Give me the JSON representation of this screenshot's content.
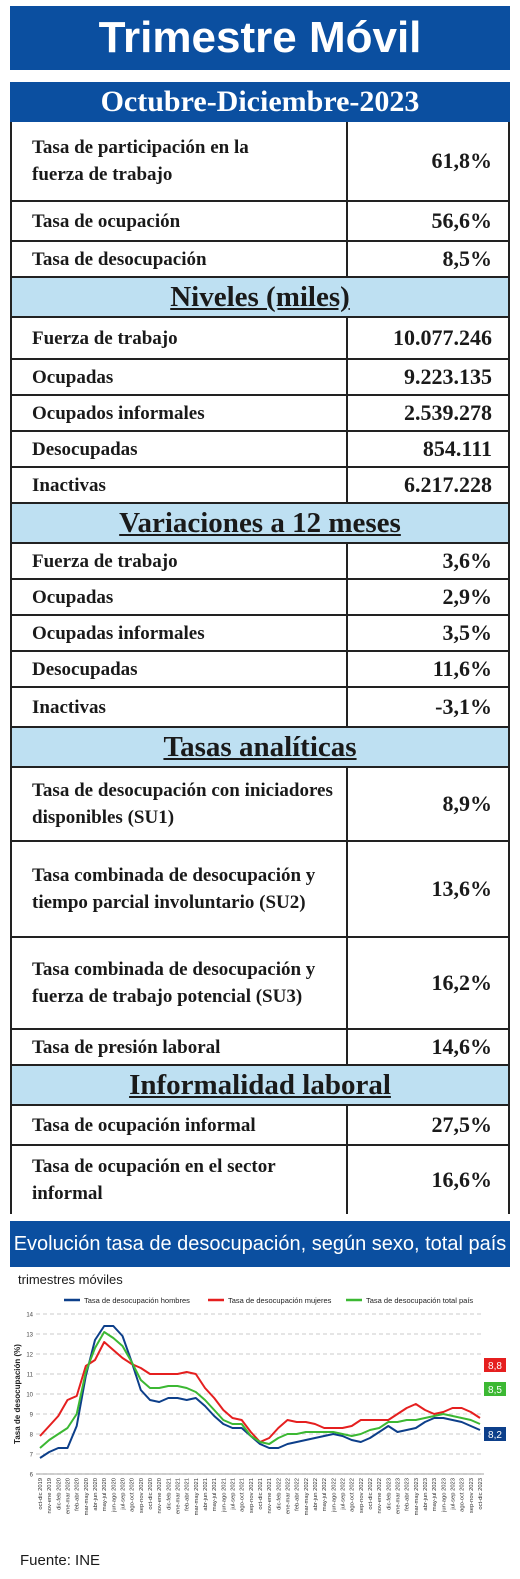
{
  "header": {
    "title": "Trimestre Móvil",
    "period": "Octubre-Diciembre-2023"
  },
  "rates": [
    {
      "label": "Tasa de participación en la fuerza de trabajo",
      "value": "61,8%"
    },
    {
      "label": "Tasa de ocupación",
      "value": "56,6%"
    },
    {
      "label": "Tasa de desocupación",
      "value": "8,5%"
    }
  ],
  "levels": {
    "title": "Niveles (miles)",
    "rows": [
      {
        "label": "Fuerza de trabajo",
        "value": "10.077.246"
      },
      {
        "label": "Ocupadas",
        "value": "9.223.135"
      },
      {
        "label": "Ocupados informales",
        "value": "2.539.278"
      },
      {
        "label": "Desocupadas",
        "value": "854.111"
      },
      {
        "label": "Inactivas",
        "value": "6.217.228"
      }
    ]
  },
  "variations": {
    "title": "Variaciones a 12 meses",
    "rows": [
      {
        "label": "Fuerza de trabajo",
        "value": "3,6%"
      },
      {
        "label": "Ocupadas",
        "value": "2,9%"
      },
      {
        "label": "Ocupadas informales",
        "value": "3,5%"
      },
      {
        "label": "Desocupadas",
        "value": "11,6%"
      },
      {
        "label": "Inactivas",
        "value": "-3,1%"
      }
    ]
  },
  "analytic": {
    "title": "Tasas analíticas",
    "rows": [
      {
        "label": "Tasa de desocupación con iniciadores disponibles (SU1)",
        "value": "8,9%"
      },
      {
        "label": "Tasa combinada de desocupación y tiempo parcial involuntario (SU2)",
        "value": "13,6%"
      },
      {
        "label": "Tasa combinada de desocupación y fuerza de trabajo potencial (SU3)",
        "value": "16,2%"
      },
      {
        "label": "Tasa de presión laboral",
        "value": "14,6%"
      }
    ]
  },
  "informality": {
    "title": "Informalidad laboral",
    "rows": [
      {
        "label": "Tasa de ocupación informal",
        "value": "27,5%"
      },
      {
        "label": "Tasa de ocupación en el sector informal",
        "value": "16,6%"
      }
    ]
  },
  "chart_section": {
    "title": "Evolución tasa de desocupación, según sexo, total país",
    "subtitle": "trimestres móviles"
  },
  "chart_data": {
    "type": "line",
    "ylabel": "Tasa de desocupación (%)",
    "ylim": [
      6,
      14
    ],
    "yticks": [
      6,
      7,
      8,
      9,
      10,
      11,
      12,
      13,
      14
    ],
    "grid": true,
    "legend_position": "top",
    "x": [
      "oct-dic 2019",
      "nov-ene 2019",
      "dic-feb 2020",
      "ene-mar 2020",
      "feb-abr 2020",
      "mar-may 2020",
      "abr-jun 2020",
      "may-jul 2020",
      "jun-ago 2020",
      "jul-sep 2020",
      "ago-oct 2020",
      "sep-nov 2020",
      "oct-dic 2020",
      "nov-ene 2020",
      "dic-feb 2021",
      "ene-mar 2021",
      "feb-abr 2021",
      "mar-may 2021",
      "abr-jun 2021",
      "may-jul 2021",
      "jun-ago 2021",
      "jul-sep 2021",
      "ago-oct 2021",
      "sep-nov 2021",
      "oct-dic 2021",
      "nov-ene 2021",
      "dic-feb 2022",
      "ene-mar 2022",
      "feb-abr 2022",
      "mar-may 2022",
      "abr-jun 2022",
      "may-jul 2022",
      "jun-ago 2022",
      "jul-sep 2022",
      "ago-oct 2022",
      "sep-nov 2022",
      "oct-dic 2022",
      "nov-ene 2022",
      "dic-feb 2023",
      "ene-mar 2023",
      "feb-abr 2023",
      "mar-may 2023",
      "abr-jun 2023",
      "may-jul 2023",
      "jun-ago 2023",
      "jul-sep 2023",
      "ago-oct 2023",
      "sep-nov 2023",
      "oct-dic 2023"
    ],
    "series": [
      {
        "name": "Tasa de desocupación hombres",
        "color": "#0d3f8a",
        "end_label": "8,2",
        "values": [
          6.8,
          7.1,
          7.3,
          7.3,
          8.4,
          10.9,
          12.7,
          13.4,
          13.4,
          12.9,
          11.6,
          10.2,
          9.7,
          9.6,
          9.8,
          9.8,
          9.7,
          9.8,
          9.4,
          8.9,
          8.5,
          8.3,
          8.3,
          7.9,
          7.5,
          7.3,
          7.3,
          7.5,
          7.6,
          7.7,
          7.8,
          7.9,
          8.0,
          7.9,
          7.7,
          7.6,
          7.8,
          8.1,
          8.4,
          8.1,
          8.2,
          8.3,
          8.6,
          8.8,
          8.8,
          8.7,
          8.6,
          8.4,
          8.2
        ]
      },
      {
        "name": "Tasa de desocupación mujeres",
        "color": "#e51f1f",
        "end_label": "8,8",
        "values": [
          7.9,
          8.4,
          8.9,
          9.7,
          9.9,
          11.4,
          11.7,
          12.6,
          12.2,
          11.8,
          11.5,
          11.3,
          11.0,
          11.0,
          11.0,
          11.0,
          11.1,
          11.0,
          10.3,
          9.8,
          9.2,
          8.8,
          8.7,
          8.1,
          7.6,
          7.8,
          8.3,
          8.7,
          8.6,
          8.6,
          8.5,
          8.3,
          8.3,
          8.3,
          8.4,
          8.7,
          8.7,
          8.7,
          8.7,
          9.0,
          9.3,
          9.5,
          9.2,
          9.0,
          9.1,
          9.3,
          9.3,
          9.1,
          8.8
        ]
      },
      {
        "name": "Tasa de desocupación total país",
        "color": "#3cb833",
        "end_label": "8,5",
        "values": [
          7.3,
          7.7,
          8.0,
          8.3,
          9.0,
          11.1,
          12.3,
          13.1,
          12.8,
          12.4,
          11.6,
          10.7,
          10.3,
          10.3,
          10.4,
          10.4,
          10.3,
          10.1,
          9.7,
          9.2,
          8.7,
          8.5,
          8.5,
          7.9,
          7.6,
          7.5,
          7.8,
          8.0,
          8.0,
          8.1,
          8.1,
          8.1,
          8.1,
          8.0,
          7.9,
          8.0,
          8.2,
          8.3,
          8.6,
          8.6,
          8.7,
          8.7,
          8.8,
          8.9,
          9.0,
          8.9,
          8.8,
          8.7,
          8.5
        ]
      }
    ]
  },
  "source": "Fuente: INE"
}
